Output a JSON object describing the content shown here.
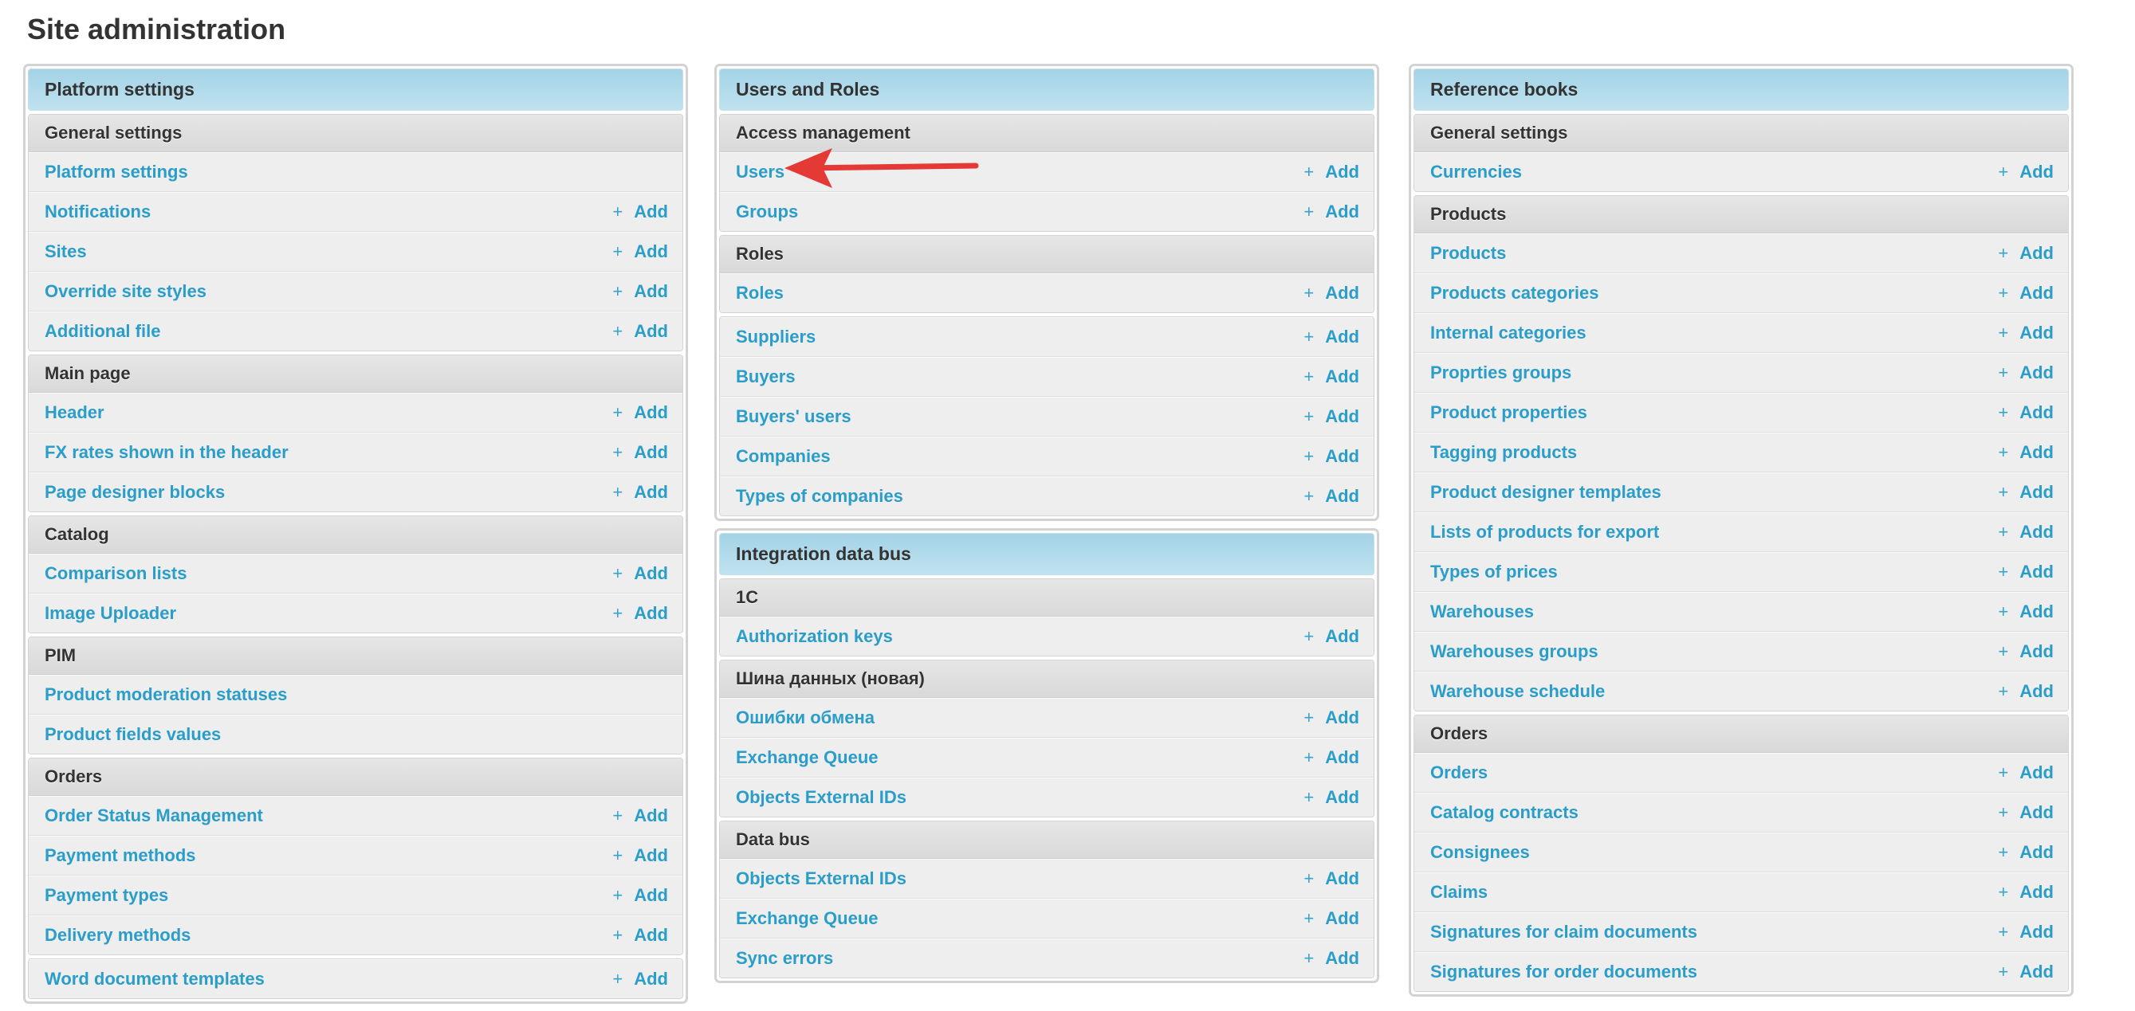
{
  "page": {
    "title": "Site administration",
    "add_label": "Add",
    "plus_icon": "plus-icon"
  },
  "colors": {
    "link": "#2a9dc8",
    "panel_header": "#a3d3e6",
    "group_header": "#dedede",
    "row": "#eeeeee",
    "annotation_arrow": "#e53935"
  },
  "columns": [
    {
      "panels": [
        {
          "title": "Platform settings",
          "groups": [
            {
              "title": "General settings",
              "items": [
                {
                  "label": "Platform settings",
                  "add": false
                },
                {
                  "label": "Notifications",
                  "add": true
                },
                {
                  "label": "Sites",
                  "add": true
                },
                {
                  "label": "Override site styles",
                  "add": true
                },
                {
                  "label": "Additional file",
                  "add": true
                }
              ]
            },
            {
              "title": "Main page",
              "items": [
                {
                  "label": "Header",
                  "add": true
                },
                {
                  "label": "FX rates shown in the header",
                  "add": true
                },
                {
                  "label": "Page designer blocks",
                  "add": true
                }
              ]
            },
            {
              "title": "Catalog",
              "items": [
                {
                  "label": "Comparison lists",
                  "add": true
                },
                {
                  "label": "Image Uploader",
                  "add": true
                }
              ]
            },
            {
              "title": "PIM",
              "items": [
                {
                  "label": "Product moderation statuses",
                  "add": false
                },
                {
                  "label": "Product fields values",
                  "add": false
                }
              ]
            },
            {
              "title": "Orders",
              "items": [
                {
                  "label": "Order Status Management",
                  "add": true
                },
                {
                  "label": "Payment methods",
                  "add": true
                },
                {
                  "label": "Payment types",
                  "add": true
                },
                {
                  "label": "Delivery methods",
                  "add": true
                }
              ]
            },
            {
              "title": "",
              "items": [
                {
                  "label": "Word document templates",
                  "add": true
                }
              ]
            }
          ]
        }
      ]
    },
    {
      "panels": [
        {
          "title": "Users and Roles",
          "groups": [
            {
              "title": "Access management",
              "items": [
                {
                  "label": "Users",
                  "add": true
                },
                {
                  "label": "Groups",
                  "add": true
                }
              ]
            },
            {
              "title": "Roles",
              "items": [
                {
                  "label": "Roles",
                  "add": true
                }
              ]
            },
            {
              "title": "",
              "items": [
                {
                  "label": "Suppliers",
                  "add": true
                },
                {
                  "label": "Buyers",
                  "add": true
                },
                {
                  "label": "Buyers' users",
                  "add": true
                },
                {
                  "label": "Companies",
                  "add": true
                },
                {
                  "label": "Types of companies",
                  "add": true
                }
              ]
            }
          ]
        },
        {
          "title": "Integration data bus",
          "groups": [
            {
              "title": "1C",
              "items": [
                {
                  "label": "Authorization keys",
                  "add": true
                }
              ]
            },
            {
              "title": "Шина данных (новая)",
              "items": [
                {
                  "label": "Ошибки обмена",
                  "add": true
                },
                {
                  "label": "Exchange Queue",
                  "add": true
                },
                {
                  "label": "Objects External IDs",
                  "add": true
                }
              ]
            },
            {
              "title": "Data bus",
              "items": [
                {
                  "label": "Objects External IDs",
                  "add": true
                },
                {
                  "label": "Exchange Queue",
                  "add": true
                },
                {
                  "label": "Sync errors",
                  "add": true
                }
              ]
            }
          ]
        }
      ]
    },
    {
      "panels": [
        {
          "title": "Reference books",
          "groups": [
            {
              "title": "General settings",
              "items": [
                {
                  "label": "Currencies",
                  "add": true
                }
              ]
            },
            {
              "title": "Products",
              "items": [
                {
                  "label": "Products",
                  "add": true
                },
                {
                  "label": "Products categories",
                  "add": true
                },
                {
                  "label": "Internal categories",
                  "add": true
                },
                {
                  "label": "Proprties groups",
                  "add": true
                },
                {
                  "label": "Product properties",
                  "add": true
                },
                {
                  "label": "Tagging products",
                  "add": true
                },
                {
                  "label": "Product designer templates",
                  "add": true
                },
                {
                  "label": "Lists of products for export",
                  "add": true
                },
                {
                  "label": "Types of prices",
                  "add": true
                },
                {
                  "label": "Warehouses",
                  "add": true
                },
                {
                  "label": "Warehouses groups",
                  "add": true
                },
                {
                  "label": "Warehouse schedule",
                  "add": true
                }
              ]
            },
            {
              "title": "Orders",
              "items": [
                {
                  "label": "Orders",
                  "add": true
                },
                {
                  "label": "Catalog contracts",
                  "add": true
                },
                {
                  "label": "Consignees",
                  "add": true
                },
                {
                  "label": "Claims",
                  "add": true
                },
                {
                  "label": "Signatures for claim documents",
                  "add": true
                },
                {
                  "label": "Signatures for order documents",
                  "add": true
                }
              ]
            }
          ]
        }
      ]
    }
  ]
}
